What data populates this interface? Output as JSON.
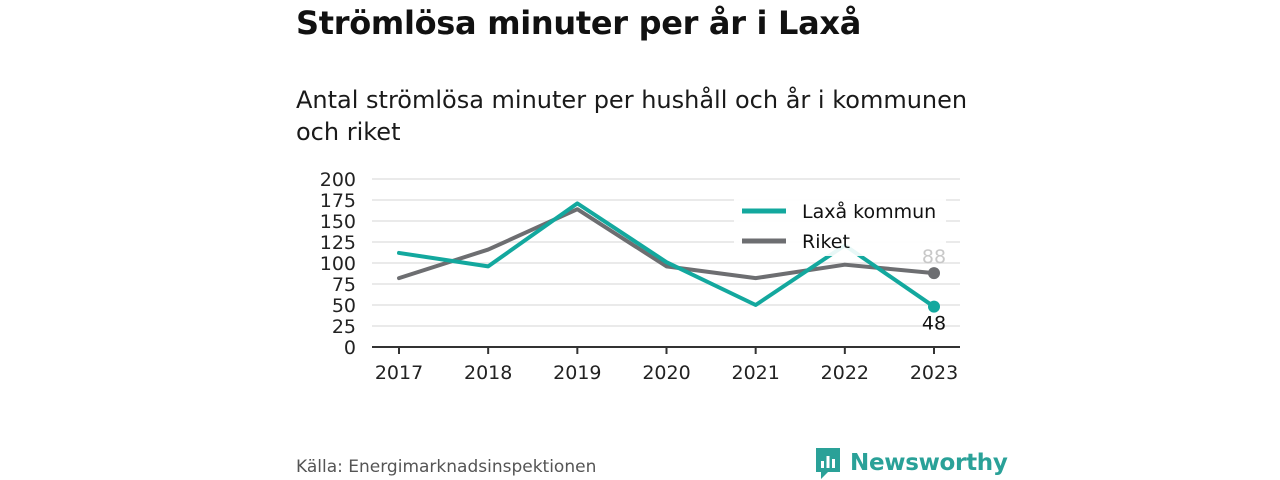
{
  "header": {
    "title": "Strömlösa minuter per år i Laxå",
    "subtitle": "Antal strömlösa minuter per hushåll och år i kommunen och riket"
  },
  "footer": {
    "source": "Källa: Energimarknadsinspektionen",
    "brand": "Newsworthy"
  },
  "colors": {
    "laxa": "#13a89e",
    "riket": "#6d6e71",
    "grid": "#e3e3e3",
    "axis": "#333333",
    "brand": "#2aa198"
  },
  "chart_data": {
    "type": "line",
    "x": [
      "2017",
      "2018",
      "2019",
      "2020",
      "2021",
      "2022",
      "2023"
    ],
    "ylim": [
      0,
      200
    ],
    "yticks": [
      0,
      25,
      50,
      75,
      100,
      125,
      150,
      175,
      200
    ],
    "grid": true,
    "legend_position": "top-right",
    "series": [
      {
        "name": "Laxå kommun",
        "values": [
          112,
          96,
          171,
          101,
          50,
          121,
          48
        ],
        "end_label": "48"
      },
      {
        "name": "Riket",
        "values": [
          82,
          116,
          164,
          96,
          82,
          98,
          88
        ],
        "end_label": "88"
      }
    ]
  }
}
